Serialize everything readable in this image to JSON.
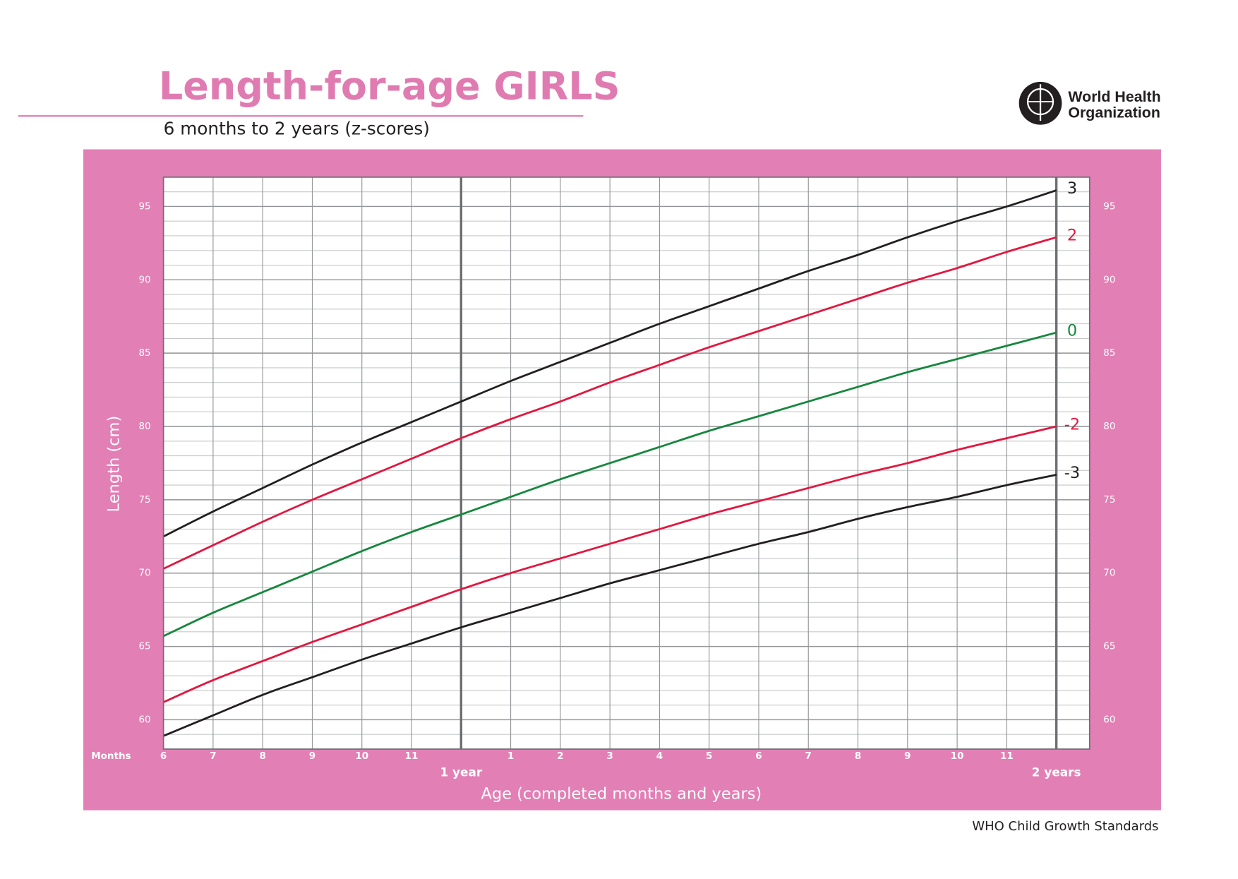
{
  "chart_data": {
    "type": "line",
    "title": "Length-for-age GIRLS",
    "subtitle": "6 months to 2 years (z-scores)",
    "xlabel": "Age (completed months and years)",
    "ylabel": "Length (cm)",
    "x_unit_label": "Months",
    "x": [
      6,
      7,
      8,
      9,
      10,
      11,
      12,
      13,
      14,
      15,
      16,
      17,
      18,
      19,
      20,
      21,
      22,
      23,
      24
    ],
    "series": [
      {
        "name": "3",
        "color": "#231f20",
        "values": [
          72.5,
          74.2,
          75.8,
          77.4,
          78.9,
          80.3,
          81.7,
          83.1,
          84.4,
          85.7,
          87.0,
          88.2,
          89.4,
          90.6,
          91.7,
          92.9,
          94.0,
          95.0,
          96.1
        ]
      },
      {
        "name": "2",
        "color": "#e2173f",
        "values": [
          70.3,
          71.9,
          73.5,
          75.0,
          76.4,
          77.8,
          79.2,
          80.5,
          81.7,
          83.0,
          84.2,
          85.4,
          86.5,
          87.6,
          88.7,
          89.8,
          90.8,
          91.9,
          92.9
        ]
      },
      {
        "name": "0",
        "color": "#16873d",
        "values": [
          65.7,
          67.3,
          68.7,
          70.1,
          71.5,
          72.8,
          74.0,
          75.2,
          76.4,
          77.5,
          78.6,
          79.7,
          80.7,
          81.7,
          82.7,
          83.7,
          84.6,
          85.5,
          86.4
        ]
      },
      {
        "name": "-2",
        "color": "#e2173f",
        "values": [
          61.2,
          62.7,
          64.0,
          65.3,
          66.5,
          67.7,
          68.9,
          70.0,
          71.0,
          72.0,
          73.0,
          74.0,
          74.9,
          75.8,
          76.7,
          77.5,
          78.4,
          79.2,
          80.0
        ]
      },
      {
        "name": "-3",
        "color": "#231f20",
        "values": [
          58.9,
          60.3,
          61.7,
          62.9,
          64.1,
          65.2,
          66.3,
          67.3,
          68.3,
          69.3,
          70.2,
          71.1,
          72.0,
          72.8,
          73.7,
          74.5,
          75.2,
          76.0,
          76.7
        ]
      }
    ],
    "xlim": [
      6,
      24.67
    ],
    "ylim": [
      58,
      97
    ],
    "xticks": [
      6,
      7,
      8,
      9,
      10,
      11,
      {
        "value": 13,
        "label": "1"
      },
      {
        "value": 14,
        "label": "2"
      },
      {
        "value": 15,
        "label": "3"
      },
      {
        "value": 16,
        "label": "4"
      },
      {
        "value": 17,
        "label": "5"
      },
      {
        "value": 18,
        "label": "6"
      },
      {
        "value": 19,
        "label": "7"
      },
      {
        "value": 20,
        "label": "8"
      },
      {
        "value": 21,
        "label": "9"
      },
      {
        "value": 22,
        "label": "10"
      },
      {
        "value": 23,
        "label": "11"
      }
    ],
    "year_ticks": [
      {
        "value": 12,
        "label": "1 year"
      },
      {
        "value": 24,
        "label": "2 years"
      }
    ],
    "yticks": [
      60,
      65,
      70,
      75,
      80,
      85,
      90,
      95
    ],
    "yminorticks": [
      58,
      59,
      60,
      61,
      62,
      63,
      64,
      65,
      66,
      67,
      68,
      69,
      70,
      71,
      72,
      73,
      74,
      75,
      76,
      77,
      78,
      79,
      80,
      81,
      82,
      83,
      84,
      85,
      86,
      87,
      88,
      89,
      90,
      91,
      92,
      93,
      94,
      95,
      96,
      97
    ],
    "grid": true
  },
  "logo": {
    "lines": [
      "World Health",
      "Organization"
    ]
  },
  "footer": "WHO Child Growth Standards"
}
